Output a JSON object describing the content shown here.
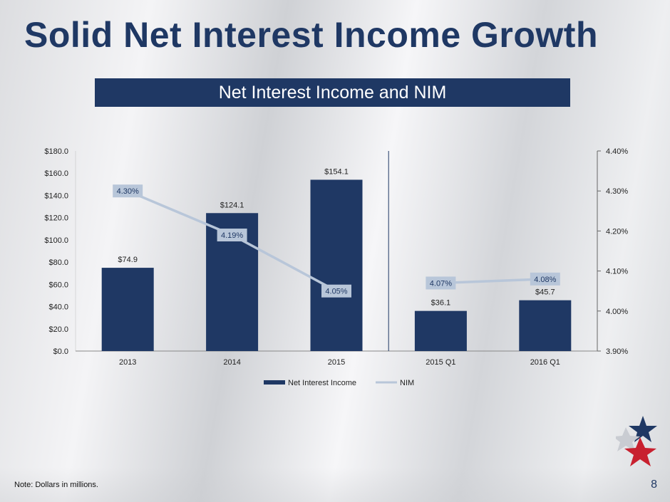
{
  "slide": {
    "title": "Solid Net Interest Income Growth",
    "banner": "Net Interest Income and NIM",
    "note": "Note: Dollars in millions.",
    "page_number": "8"
  },
  "colors": {
    "bar": "#1f3864",
    "nim_line": "#b8c6d9",
    "title": "#1f3864",
    "label_bg": "#b8c6d9"
  },
  "logo": {
    "name": "star-logo-icon"
  },
  "chart_data": {
    "type": "bar",
    "categories": [
      "2013",
      "2014",
      "2015",
      "2015 Q1",
      "2016 Q1"
    ],
    "series": [
      {
        "name": "Net Interest Income",
        "type": "bar",
        "axis": "left",
        "values": [
          74.9,
          124.1,
          154.1,
          36.1,
          45.7
        ],
        "labels": [
          "$74.9",
          "$124.1",
          "$154.1",
          "$36.1",
          "$45.7"
        ]
      },
      {
        "name": "NIM",
        "type": "line",
        "axis": "right",
        "values": [
          4.3,
          4.19,
          4.05,
          4.07,
          4.08
        ],
        "labels": [
          "4.30%",
          "4.19%",
          "4.05%",
          "4.07%",
          "4.08%"
        ],
        "segments": [
          [
            0,
            2
          ],
          [
            3,
            4
          ]
        ]
      }
    ],
    "y_left": {
      "range": [
        0,
        180
      ],
      "ticks": [
        0,
        20,
        40,
        60,
        80,
        100,
        120,
        140,
        160,
        180
      ],
      "tick_labels": [
        "$0.0",
        "$20.0",
        "$40.0",
        "$60.0",
        "$80.0",
        "$100.0",
        "$120.0",
        "$140.0",
        "$160.0",
        "$180.0"
      ]
    },
    "y_right": {
      "range": [
        3.9,
        4.4
      ],
      "ticks": [
        3.9,
        4.0,
        4.1,
        4.2,
        4.3,
        4.4
      ],
      "tick_labels": [
        "3.90%",
        "4.00%",
        "4.10%",
        "4.20%",
        "4.30%",
        "4.40%"
      ]
    },
    "divider_after_category": 2,
    "grid": false,
    "legend": "bottom"
  }
}
